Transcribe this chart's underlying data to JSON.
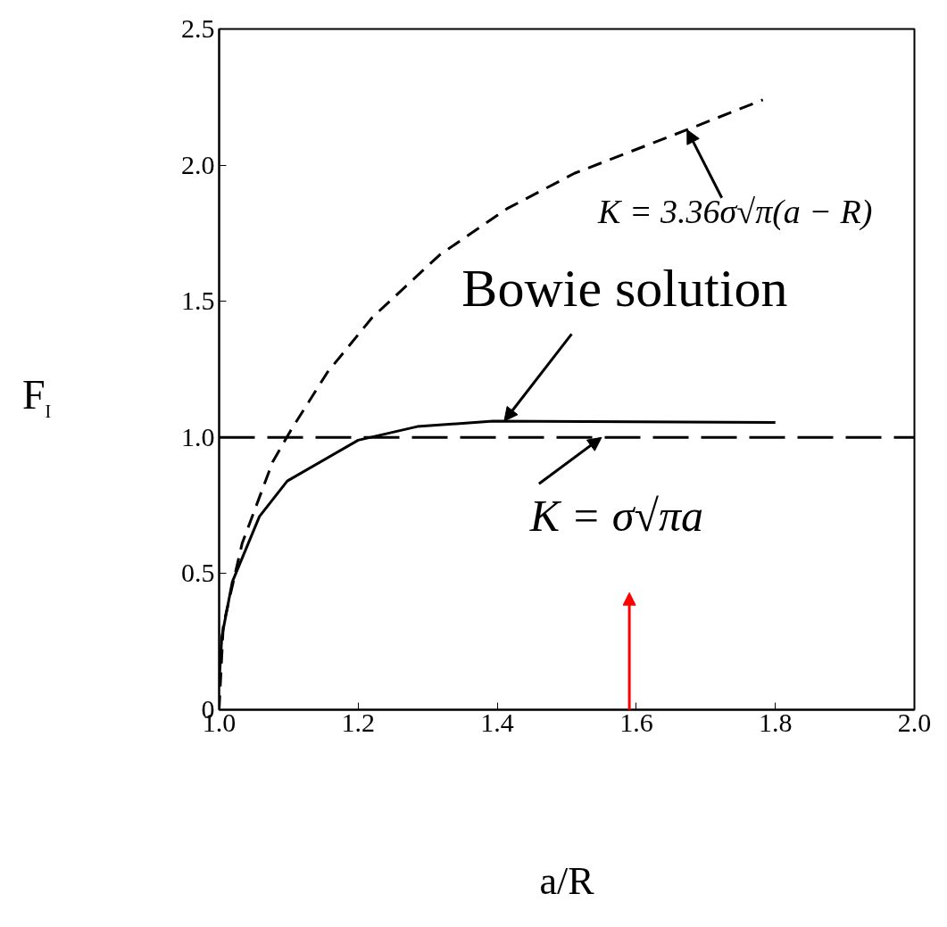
{
  "chart_data": {
    "type": "line",
    "ylabel": "F$_{I}$",
    "xlabel": "a/R",
    "xlim": [
      1.0,
      2.0
    ],
    "xticks": [
      {
        "value": 1,
        "label": "1.0"
      },
      1.2,
      1.4,
      1.6,
      1.8,
      {
        "value": 2,
        "label": "2.0"
      }
    ],
    "ylim": [
      0,
      2.5
    ],
    "yticks": [
      0,
      0.5,
      {
        "value": 1,
        "label": "1.0"
      },
      1.5,
      {
        "value": 2,
        "label": "2.0"
      },
      2.5
    ],
    "grid": false,
    "marker": "none",
    "series": [
      {
        "color": "#000000",
        "line_style": "dashed",
        "x": [
          1.0,
          1.006,
          1.033,
          1.077,
          1.104,
          1.156,
          1.22,
          1.317,
          1.414,
          1.511,
          1.673,
          1.782
        ],
        "values": [
          0.0,
          0.31,
          0.61,
          0.91,
          1.03,
          1.24,
          1.44,
          1.67,
          1.84,
          1.97,
          2.13,
          2.24
        ]
      },
      {
        "color": "#000000",
        "line_style": "solid",
        "x": [
          1.0,
          1.004,
          1.019,
          1.058,
          1.098,
          1.2,
          1.285,
          1.394,
          1.8
        ],
        "values": [
          0.1,
          0.27,
          0.47,
          0.71,
          0.84,
          0.99,
          1.04,
          1.06,
          1.055
        ]
      }
    ],
    "ref_lines": [
      {
        "axis": "y",
        "value": 1.0,
        "color": "#000000",
        "line_style": "dashed"
      }
    ],
    "annotations": [
      {
        "text": "K = 3.36σ√π(a − R)",
        "x": 1.673,
        "y": 2.13
      },
      {
        "text": "Bowie solution",
        "x": 1.41,
        "y": 1.06
      },
      {
        "text": "K = σ√πa",
        "x": 1.55,
        "y": 1.0
      }
    ]
  }
}
